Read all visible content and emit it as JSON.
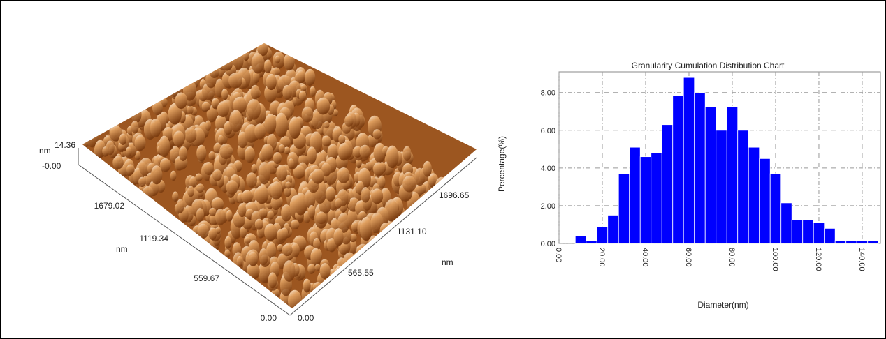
{
  "afm_image": {
    "z_unit": "nm",
    "z_max": "14.36",
    "z_min": "-0.00",
    "y_labels": [
      "1679.02",
      "1119.34",
      "559.67",
      "0.00"
    ],
    "y_unit": "nm",
    "x_labels": [
      "0.00",
      "565.55",
      "1131.10",
      "1696.65"
    ],
    "x_unit": "nm"
  },
  "chart_data": {
    "type": "histogram",
    "title": "Granularity Cumulation Distribution  Chart",
    "x_label": "Diameter(nm)",
    "y_label": "Percentage(%)",
    "color": "#0000ff",
    "bins": [
      7.5,
      12.5,
      17.5,
      22.5,
      27.5,
      32.5,
      37.5,
      42.5,
      47.5,
      52.5,
      57.5,
      62.5,
      67.5,
      72.5,
      77.5,
      82.5,
      87.5,
      92.5,
      97.5,
      102.5,
      107.5,
      112.5,
      117.5,
      122.5,
      127.5,
      132.5,
      137.5,
      142.5,
      147.5
    ],
    "values": [
      0.4,
      0.15,
      0.9,
      1.5,
      3.7,
      5.1,
      4.6,
      4.8,
      6.3,
      7.85,
      8.8,
      8.0,
      7.25,
      6.0,
      7.25,
      6.0,
      5.1,
      4.5,
      3.7,
      2.15,
      1.25,
      1.25,
      1.1,
      0.8,
      0.15,
      0.15,
      0.15,
      0.15
    ],
    "xlim": [
      0,
      148.4
    ],
    "ylim": [
      0,
      9.1
    ],
    "xticks": [
      {
        "value": 0,
        "label": "0.00"
      },
      {
        "value": 20,
        "label": "20.00"
      },
      {
        "value": 40,
        "label": "40.00"
      },
      {
        "value": 60,
        "label": "60.00"
      },
      {
        "value": 80,
        "label": "80.00"
      },
      {
        "value": 100,
        "label": "100.00"
      },
      {
        "value": 120,
        "label": "120.00"
      },
      {
        "value": 140,
        "label": "140.00"
      }
    ],
    "yticks": [
      {
        "value": 0,
        "label": "0.00"
      },
      {
        "value": 2,
        "label": "2.00"
      },
      {
        "value": 4,
        "label": "4.00"
      },
      {
        "value": 6,
        "label": "6.00"
      },
      {
        "value": 8,
        "label": "8.00"
      }
    ],
    "grid": true
  }
}
